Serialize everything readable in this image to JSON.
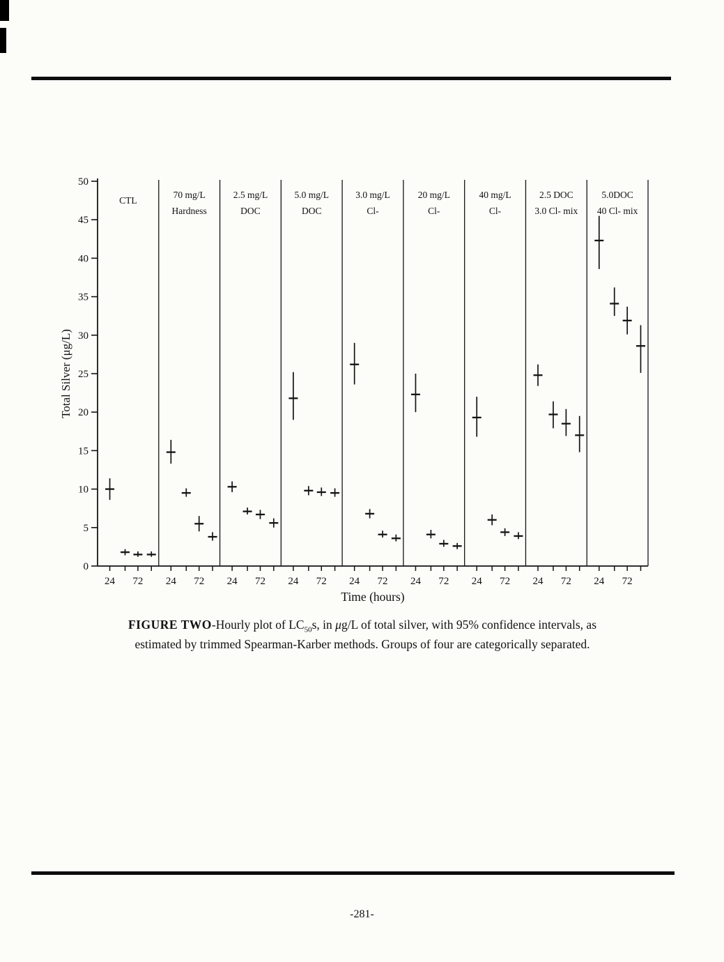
{
  "page": {
    "number": "-281-"
  },
  "caption": {
    "bold": "FIGURE TWO",
    "seg1": "-Hourly plot of LC",
    "sub": "50",
    "seg2": "s, in ",
    "mu": "μ",
    "seg3": "g/L of total silver, with 95% confidence intervals, as",
    "line2": "estimated by trimmed Spearman-Karber methods. Groups of four are categorically separated."
  },
  "chart_data": {
    "type": "scatter",
    "subtype": "point-estimates-with-95CI-error-bars",
    "xlabel": "Time (hours)",
    "ylabel": "Total Silver (μg/L)",
    "ylim": [
      0,
      50
    ],
    "ytick_step": 5,
    "x_hours": [
      24,
      48,
      72,
      96
    ],
    "xtick_labels": [
      "24",
      "72"
    ],
    "legend": "none",
    "grid": false,
    "groups": [
      {
        "label": [
          "CTL"
        ],
        "values": [
          10.0,
          1.8,
          1.5,
          1.5
        ],
        "ci_low": [
          8.6,
          1.4,
          1.2,
          1.2
        ],
        "ci_high": [
          11.4,
          2.2,
          1.9,
          1.9
        ]
      },
      {
        "label": [
          "70 mg/L",
          "Hardness"
        ],
        "values": [
          14.8,
          9.5,
          5.5,
          3.8
        ],
        "ci_low": [
          13.3,
          9.0,
          4.5,
          3.3
        ],
        "ci_high": [
          16.4,
          10.1,
          6.5,
          4.4
        ]
      },
      {
        "label": [
          "2.5 mg/L",
          "DOC"
        ],
        "values": [
          10.3,
          7.1,
          6.7,
          5.6
        ],
        "ci_low": [
          9.6,
          6.7,
          6.1,
          5.0
        ],
        "ci_high": [
          11.0,
          7.6,
          7.3,
          6.2
        ]
      },
      {
        "label": [
          "5.0 mg/L",
          "DOC"
        ],
        "values": [
          21.8,
          9.8,
          9.6,
          9.5
        ],
        "ci_low": [
          19.0,
          9.2,
          9.1,
          9.0
        ],
        "ci_high": [
          25.2,
          10.4,
          10.2,
          10.1
        ]
      },
      {
        "label": [
          "3.0 mg/L",
          "Cl-"
        ],
        "values": [
          26.2,
          6.8,
          4.1,
          3.6
        ],
        "ci_low": [
          23.6,
          6.2,
          3.7,
          3.2
        ],
        "ci_high": [
          29.0,
          7.4,
          4.6,
          4.1
        ]
      },
      {
        "label": [
          "20 mg/L",
          "Cl-"
        ],
        "values": [
          22.3,
          4.1,
          2.9,
          2.6
        ],
        "ci_low": [
          20.0,
          3.6,
          2.5,
          2.2
        ],
        "ci_high": [
          25.0,
          4.7,
          3.4,
          3.0
        ]
      },
      {
        "label": [
          "40 mg/L",
          "Cl-"
        ],
        "values": [
          19.3,
          6.0,
          4.4,
          3.9
        ],
        "ci_low": [
          16.8,
          5.3,
          3.9,
          3.5
        ],
        "ci_high": [
          22.0,
          6.7,
          4.9,
          4.4
        ]
      },
      {
        "label": [
          "2.5 DOC",
          "3.0 Cl- mix"
        ],
        "values": [
          24.8,
          19.7,
          18.5,
          17.0
        ],
        "ci_low": [
          23.4,
          17.9,
          16.9,
          14.8
        ],
        "ci_high": [
          26.2,
          21.4,
          20.4,
          19.5
        ]
      },
      {
        "label": [
          "5.0DOC",
          "40 Cl- mix"
        ],
        "values": [
          42.3,
          34.1,
          31.9,
          28.6
        ],
        "ci_low": [
          38.6,
          32.5,
          30.1,
          25.1
        ],
        "ci_high": [
          45.5,
          36.2,
          33.7,
          31.3
        ]
      }
    ]
  }
}
